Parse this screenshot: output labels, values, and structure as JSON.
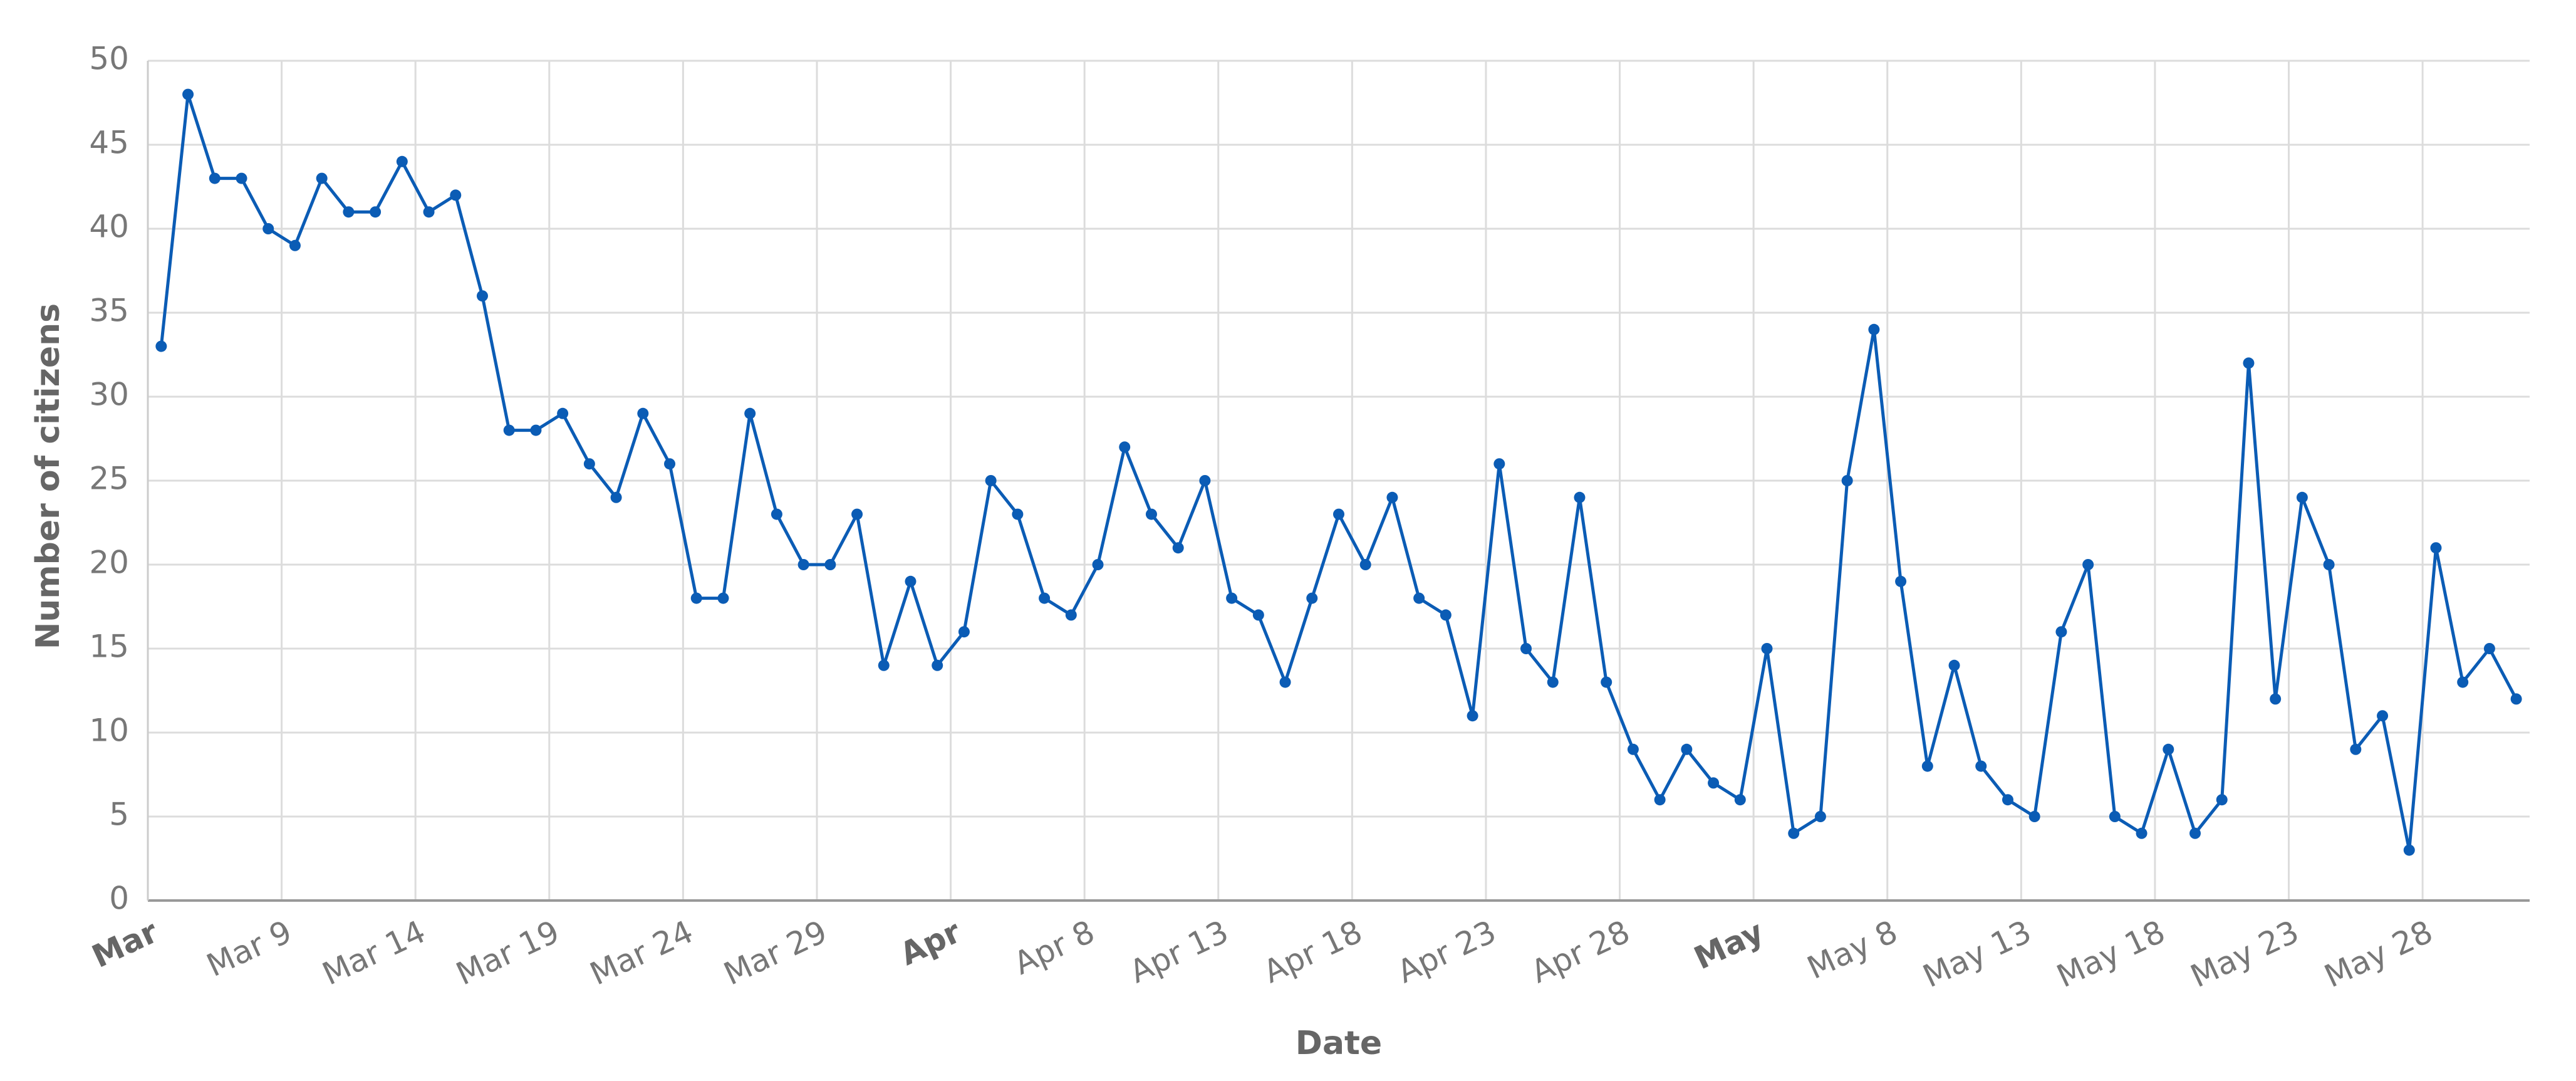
{
  "chart_data": {
    "type": "line",
    "x_label": "Date",
    "y_label": "Number of citizens",
    "categories": [
      "Mar",
      null,
      null,
      null,
      null,
      "Mar 9",
      null,
      null,
      null,
      null,
      "Mar 14",
      null,
      null,
      null,
      null,
      "Mar 19",
      null,
      null,
      null,
      null,
      "Mar 24",
      null,
      null,
      null,
      null,
      "Mar 29",
      null,
      null,
      null,
      null,
      "Apr",
      null,
      null,
      null,
      null,
      "Apr 8",
      null,
      null,
      null,
      null,
      "Apr 13",
      null,
      null,
      null,
      null,
      "Apr 18",
      null,
      null,
      null,
      null,
      "Apr 23",
      null,
      null,
      null,
      null,
      "Apr 28",
      null,
      null,
      null,
      null,
      "May",
      null,
      null,
      null,
      null,
      "May 8",
      null,
      null,
      null,
      null,
      "May 13",
      null,
      null,
      null,
      null,
      "May 18",
      null,
      null,
      null,
      null,
      "May 23",
      null,
      null,
      null,
      null,
      "May 28",
      null,
      null,
      null
    ],
    "values": [
      33,
      48,
      43,
      43,
      40,
      39,
      43,
      41,
      41,
      44,
      41,
      42,
      36,
      28,
      28,
      29,
      26,
      24,
      29,
      26,
      18,
      18,
      29,
      23,
      20,
      20,
      23,
      14,
      19,
      14,
      16,
      25,
      23,
      18,
      17,
      20,
      27,
      23,
      21,
      25,
      18,
      17,
      13,
      18,
      23,
      20,
      24,
      18,
      17,
      11,
      26,
      15,
      13,
      24,
      13,
      9,
      6,
      9,
      7,
      6,
      15,
      4,
      5,
      25,
      34,
      19,
      8,
      14,
      8,
      6,
      5,
      16,
      20,
      5,
      4,
      9,
      4,
      6,
      32,
      12,
      24,
      20,
      9,
      11,
      3,
      21,
      13,
      15,
      12
    ],
    "color": "#0b5cb5",
    "ylim": [
      0,
      50
    ],
    "yticks": [
      0,
      5,
      10,
      15,
      20,
      25,
      30,
      35,
      40,
      45,
      50
    ],
    "grid": true
  }
}
